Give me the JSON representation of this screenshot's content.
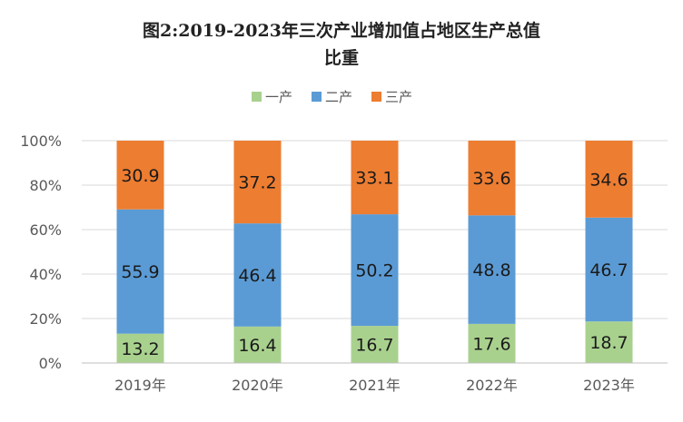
{
  "chart_data": {
    "type": "bar",
    "stacked": true,
    "percent": true,
    "title": "图2:2019-2023年三次产业增加值占地区生产总值比重",
    "title_lines": [
      "图2:2019-2023年三次产业增加值占地区生产总值",
      "比重"
    ],
    "categories": [
      "2019年",
      "2020年",
      "2021年",
      "2022年",
      "2023年"
    ],
    "series": [
      {
        "name": "一产",
        "color": "#a9d18e",
        "values": [
          13.2,
          16.4,
          16.7,
          17.6,
          18.7
        ]
      },
      {
        "name": "二产",
        "color": "#5b9bd5",
        "values": [
          55.9,
          46.4,
          50.2,
          48.8,
          46.7
        ]
      },
      {
        "name": "三产",
        "color": "#ed7d31",
        "values": [
          30.9,
          37.2,
          33.1,
          33.6,
          34.6
        ]
      }
    ],
    "ylim": [
      0,
      100
    ],
    "yticks": [
      "0%",
      "20%",
      "40%",
      "60%",
      "80%",
      "100%"
    ],
    "grid": true,
    "legend_position": "top"
  }
}
